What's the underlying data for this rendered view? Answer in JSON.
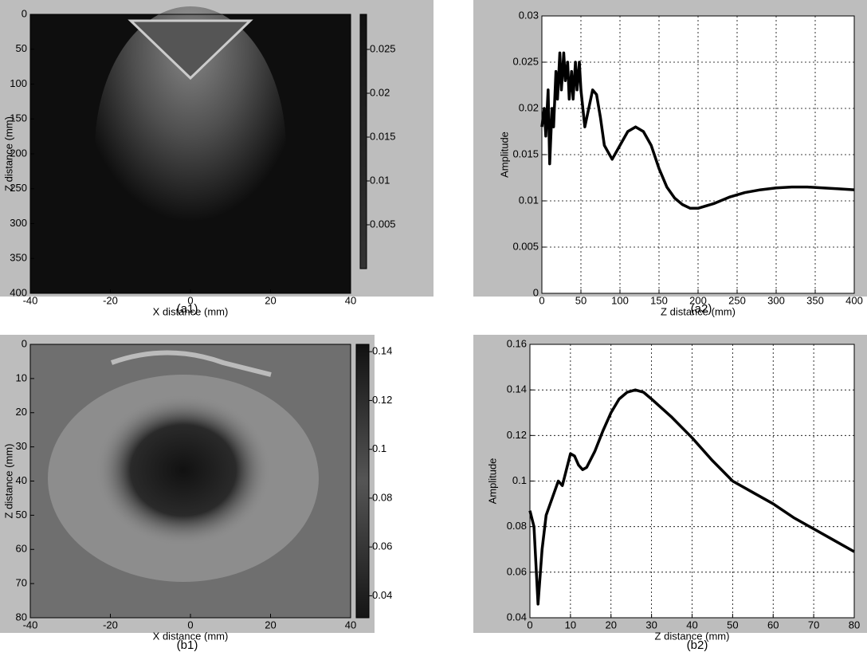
{
  "chart_data": [
    {
      "type": "heatmap",
      "caption": "(a1)",
      "xlabel": "X distance (mm)",
      "ylabel": "Z distance (mm)",
      "xlim": [
        -40,
        40
      ],
      "xticks": [
        -40,
        -20,
        0,
        20,
        40
      ],
      "ylim": [
        0,
        400
      ],
      "yticks": [
        0,
        50,
        100,
        150,
        200,
        250,
        300,
        350,
        400
      ],
      "y_reversed": true,
      "colormap": "gray",
      "clim": [
        0,
        0.029
      ],
      "cticks": [
        0.005,
        0.01,
        0.015,
        0.02,
        0.025
      ]
    },
    {
      "type": "line",
      "caption": "(a2)",
      "xlabel": "Z distance (mm)",
      "ylabel": "Amplitude",
      "color": "#000000",
      "grid": true,
      "xlim": [
        0,
        400
      ],
      "xticks": [
        0,
        50,
        100,
        150,
        200,
        250,
        300,
        350,
        400
      ],
      "ylim": [
        0,
        0.03
      ],
      "yticks": [
        0,
        0.005,
        0.01,
        0.015,
        0.02,
        0.025,
        0.03
      ],
      "x": [
        0,
        3,
        5,
        8,
        10,
        13,
        15,
        18,
        20,
        23,
        25,
        28,
        30,
        33,
        35,
        38,
        40,
        43,
        45,
        48,
        50,
        55,
        60,
        65,
        70,
        75,
        80,
        90,
        100,
        110,
        120,
        130,
        140,
        150,
        160,
        170,
        180,
        190,
        200,
        220,
        240,
        260,
        280,
        300,
        320,
        340,
        360,
        380,
        400
      ],
      "values": [
        0.018,
        0.02,
        0.017,
        0.022,
        0.014,
        0.02,
        0.018,
        0.024,
        0.021,
        0.026,
        0.022,
        0.026,
        0.023,
        0.025,
        0.021,
        0.024,
        0.021,
        0.025,
        0.022,
        0.025,
        0.022,
        0.018,
        0.02,
        0.022,
        0.0215,
        0.019,
        0.016,
        0.0145,
        0.016,
        0.0175,
        0.018,
        0.0175,
        0.016,
        0.0135,
        0.0115,
        0.0103,
        0.0096,
        0.0092,
        0.0092,
        0.0097,
        0.0104,
        0.0109,
        0.0112,
        0.0114,
        0.0115,
        0.0115,
        0.0114,
        0.0113,
        0.0112
      ]
    },
    {
      "type": "heatmap",
      "caption": "(b1)",
      "xlabel": "X distance (mm)",
      "ylabel": "Z distance (mm)",
      "xlim": [
        -40,
        40
      ],
      "xticks": [
        -40,
        -20,
        0,
        20,
        40
      ],
      "ylim": [
        0,
        80
      ],
      "yticks": [
        0,
        10,
        20,
        30,
        40,
        50,
        60,
        70,
        80
      ],
      "y_reversed": true,
      "colormap": "gray",
      "clim": [
        0.031,
        0.143
      ],
      "cticks": [
        0.04,
        0.06,
        0.08,
        0.1,
        0.12,
        0.14
      ]
    },
    {
      "type": "line",
      "caption": "(b2)",
      "xlabel": "Z distance (mm)",
      "ylabel": "Amplitude",
      "color": "#000000",
      "grid": true,
      "xlim": [
        0,
        80
      ],
      "xticks": [
        0,
        10,
        20,
        30,
        40,
        50,
        60,
        70,
        80
      ],
      "ylim": [
        0.04,
        0.16
      ],
      "yticks": [
        0.04,
        0.06,
        0.08,
        0.1,
        0.12,
        0.14,
        0.16
      ],
      "x": [
        0,
        1,
        2,
        3,
        4,
        5,
        6,
        7,
        8,
        9,
        10,
        11,
        12,
        13,
        14,
        16,
        18,
        20,
        22,
        24,
        26,
        28,
        30,
        35,
        40,
        45,
        50,
        55,
        60,
        65,
        70,
        75,
        80
      ],
      "values": [
        0.087,
        0.08,
        0.046,
        0.07,
        0.085,
        0.09,
        0.095,
        0.1,
        0.098,
        0.105,
        0.112,
        0.111,
        0.107,
        0.105,
        0.106,
        0.113,
        0.122,
        0.13,
        0.136,
        0.139,
        0.14,
        0.139,
        0.136,
        0.128,
        0.119,
        0.109,
        0.1,
        0.095,
        0.09,
        0.084,
        0.079,
        0.074,
        0.069
      ]
    }
  ]
}
